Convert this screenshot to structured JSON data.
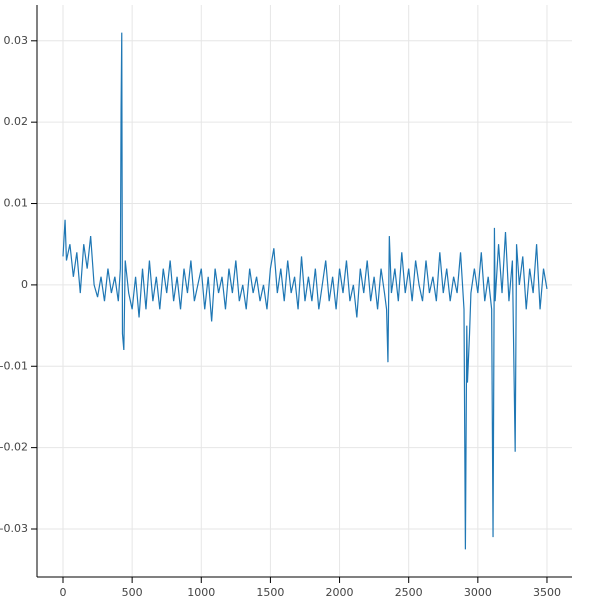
{
  "chart_data": {
    "type": "line",
    "color": "#1f77b4",
    "grid": true,
    "xlim": [
      -188,
      3681
    ],
    "ylim": [
      -0.0359,
      0.0344
    ],
    "xticks": [
      0,
      500,
      1000,
      1500,
      2000,
      2500,
      3000,
      3500
    ],
    "yticks": [
      -0.03,
      -0.02,
      -0.01,
      0,
      0.01,
      0.02,
      0.03
    ],
    "x": [
      0,
      15,
      25,
      50,
      75,
      100,
      125,
      150,
      175,
      200,
      225,
      250,
      275,
      300,
      325,
      350,
      375,
      400,
      415,
      420,
      425,
      430,
      440,
      450,
      475,
      500,
      525,
      550,
      575,
      600,
      625,
      650,
      675,
      700,
      725,
      750,
      775,
      800,
      825,
      850,
      875,
      900,
      925,
      950,
      975,
      1000,
      1025,
      1050,
      1075,
      1100,
      1125,
      1150,
      1175,
      1200,
      1225,
      1250,
      1275,
      1300,
      1325,
      1350,
      1375,
      1400,
      1425,
      1450,
      1475,
      1500,
      1525,
      1550,
      1575,
      1600,
      1625,
      1650,
      1675,
      1700,
      1725,
      1750,
      1775,
      1800,
      1825,
      1850,
      1875,
      1900,
      1925,
      1950,
      1975,
      2000,
      2025,
      2050,
      2075,
      2100,
      2125,
      2150,
      2175,
      2200,
      2225,
      2250,
      2275,
      2300,
      2325,
      2340,
      2350,
      2360,
      2375,
      2400,
      2425,
      2450,
      2475,
      2500,
      2525,
      2550,
      2575,
      2600,
      2625,
      2650,
      2675,
      2700,
      2725,
      2750,
      2775,
      2800,
      2825,
      2850,
      2875,
      2900,
      2910,
      2920,
      2925,
      2940,
      2950,
      2975,
      3000,
      3025,
      3050,
      3075,
      3100,
      3110,
      3120,
      3125,
      3150,
      3175,
      3200,
      3225,
      3250,
      3270,
      3280,
      3300,
      3325,
      3350,
      3375,
      3400,
      3425,
      3450,
      3475,
      3500
    ],
    "values": [
      0.0035,
      0.008,
      0.003,
      0.005,
      0.001,
      0.004,
      -0.001,
      0.005,
      0.002,
      0.006,
      0,
      -0.0015,
      0.001,
      -0.002,
      0.002,
      -0.001,
      0.001,
      -0.002,
      0.002,
      0.0215,
      0.031,
      -0.006,
      -0.008,
      0.003,
      -0.001,
      -0.003,
      0.001,
      -0.004,
      0.002,
      -0.003,
      0.003,
      -0.002,
      0.001,
      -0.003,
      0.002,
      -0.001,
      0.003,
      -0.002,
      0.001,
      -0.003,
      0.002,
      -0.001,
      0.003,
      -0.002,
      0,
      0.002,
      -0.003,
      0.001,
      -0.0045,
      0.002,
      -0.001,
      0.001,
      -0.003,
      0.002,
      -0.001,
      0.003,
      -0.002,
      0,
      -0.003,
      0.002,
      -0.001,
      0.001,
      -0.002,
      0,
      -0.003,
      0.002,
      0.0045,
      -0.001,
      0.002,
      -0.002,
      0.003,
      -0.001,
      0.001,
      -0.003,
      0.0035,
      -0.002,
      0.001,
      -0.002,
      0.002,
      -0.003,
      0,
      0.003,
      -0.002,
      0.001,
      -0.003,
      0.002,
      -0.001,
      0.003,
      -0.002,
      0,
      -0.004,
      0.002,
      -0.001,
      0.003,
      -0.002,
      0.001,
      -0.003,
      0.002,
      -0.001,
      -0.003,
      -0.0095,
      0.006,
      -0.001,
      0.002,
      -0.002,
      0.004,
      -0.001,
      0.002,
      -0.002,
      0.003,
      0,
      -0.002,
      0.003,
      -0.001,
      0.001,
      -0.002,
      0.004,
      -0.001,
      0.002,
      -0.002,
      0.001,
      -0.001,
      0.004,
      -0.003,
      -0.0325,
      -0.005,
      -0.012,
      -0.006,
      -0.001,
      0.002,
      -0.001,
      0.004,
      -0.002,
      0.001,
      -0.003,
      -0.031,
      0.007,
      -0.002,
      0.005,
      -0.001,
      0.0065,
      -0.002,
      0.003,
      -0.0205,
      0.005,
      0,
      0.0035,
      -0.003,
      0.002,
      -0.001,
      0.005,
      -0.003,
      0.002,
      -0.0005
    ]
  }
}
